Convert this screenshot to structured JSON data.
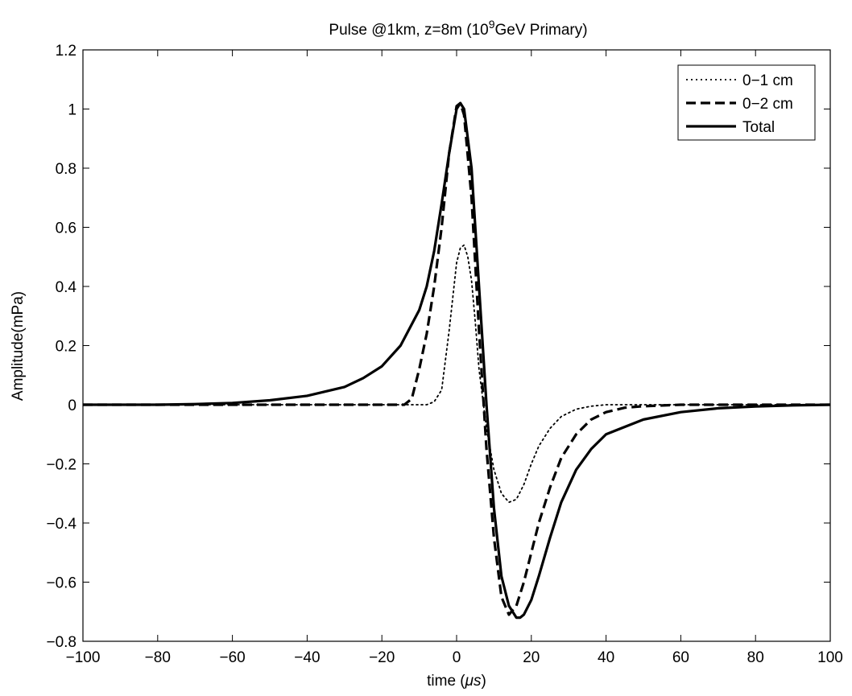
{
  "chart_data": {
    "type": "line",
    "title_main": "Pulse @1km, z=8m (10",
    "title_sup": "9",
    "title_end": "GeV Primary)",
    "xlabel_main": "time (",
    "xlabel_mu": "μs",
    "xlabel_end": ")",
    "ylabel": "Amplitude(mPa)",
    "xlim": [
      -100,
      100
    ],
    "ylim": [
      -0.8,
      1.2
    ],
    "xticks": [
      -100,
      -80,
      -60,
      -40,
      -20,
      0,
      20,
      40,
      60,
      80,
      100
    ],
    "yticks": [
      -0.8,
      -0.6,
      -0.4,
      -0.2,
      0,
      0.2,
      0.4,
      0.6,
      0.8,
      1,
      1.2
    ],
    "xtick_labels": [
      "−100",
      "−80",
      "−60",
      "−40",
      "−20",
      "0",
      "20",
      "40",
      "60",
      "80",
      "100"
    ],
    "ytick_labels": [
      "−0.8",
      "−0.6",
      "−0.4",
      "−0.2",
      "0",
      "0.2",
      "0.4",
      "0.6",
      "0.8",
      "1",
      "1.2"
    ],
    "grid": false,
    "legend_position": "top-right",
    "series": [
      {
        "name": "0−1 cm",
        "style": "dotted",
        "x": [
          -100,
          -60,
          -20,
          -10,
          -8,
          -6,
          -4,
          -2,
          0,
          1,
          2,
          3,
          4,
          5,
          6,
          8,
          10,
          12,
          14,
          16,
          18,
          20,
          22,
          25,
          28,
          32,
          36,
          40,
          50,
          60,
          100
        ],
        "y": [
          0,
          0,
          0,
          0,
          0,
          0.01,
          0.05,
          0.25,
          0.48,
          0.53,
          0.54,
          0.5,
          0.42,
          0.28,
          0.12,
          -0.08,
          -0.22,
          -0.3,
          -0.33,
          -0.32,
          -0.27,
          -0.2,
          -0.14,
          -0.08,
          -0.04,
          -0.015,
          -0.005,
          0,
          0,
          0,
          0
        ]
      },
      {
        "name": "0−2 cm",
        "style": "dashed",
        "x": [
          -100,
          -60,
          -30,
          -14,
          -12,
          -10,
          -8,
          -6,
          -4,
          -2,
          0,
          1,
          2,
          4,
          6,
          8,
          10,
          12,
          14,
          16,
          18,
          20,
          22,
          25,
          28,
          32,
          36,
          40,
          45,
          50,
          60,
          70,
          100
        ],
        "y": [
          0,
          0,
          0,
          0,
          0.02,
          0.12,
          0.24,
          0.4,
          0.6,
          0.85,
          1.01,
          1.02,
          0.98,
          0.7,
          0.25,
          -0.15,
          -0.45,
          -0.65,
          -0.71,
          -0.68,
          -0.6,
          -0.5,
          -0.4,
          -0.28,
          -0.18,
          -0.1,
          -0.05,
          -0.025,
          -0.01,
          -0.005,
          0,
          0,
          0
        ]
      },
      {
        "name": "Total",
        "style": "solid",
        "x": [
          -100,
          -80,
          -70,
          -60,
          -50,
          -40,
          -30,
          -25,
          -20,
          -15,
          -10,
          -8,
          -6,
          -4,
          -2,
          0,
          1,
          2,
          4,
          6,
          8,
          10,
          12,
          14,
          16,
          17,
          18,
          20,
          22,
          25,
          28,
          32,
          36,
          40,
          50,
          60,
          70,
          80,
          90,
          100
        ],
        "y": [
          0,
          0,
          0.002,
          0.006,
          0.015,
          0.03,
          0.06,
          0.09,
          0.13,
          0.2,
          0.32,
          0.4,
          0.52,
          0.68,
          0.85,
          1.0,
          1.02,
          1.0,
          0.8,
          0.4,
          0.0,
          -0.35,
          -0.58,
          -0.68,
          -0.72,
          -0.72,
          -0.71,
          -0.66,
          -0.58,
          -0.45,
          -0.33,
          -0.22,
          -0.15,
          -0.1,
          -0.05,
          -0.025,
          -0.012,
          -0.006,
          -0.002,
          0
        ]
      }
    ]
  }
}
